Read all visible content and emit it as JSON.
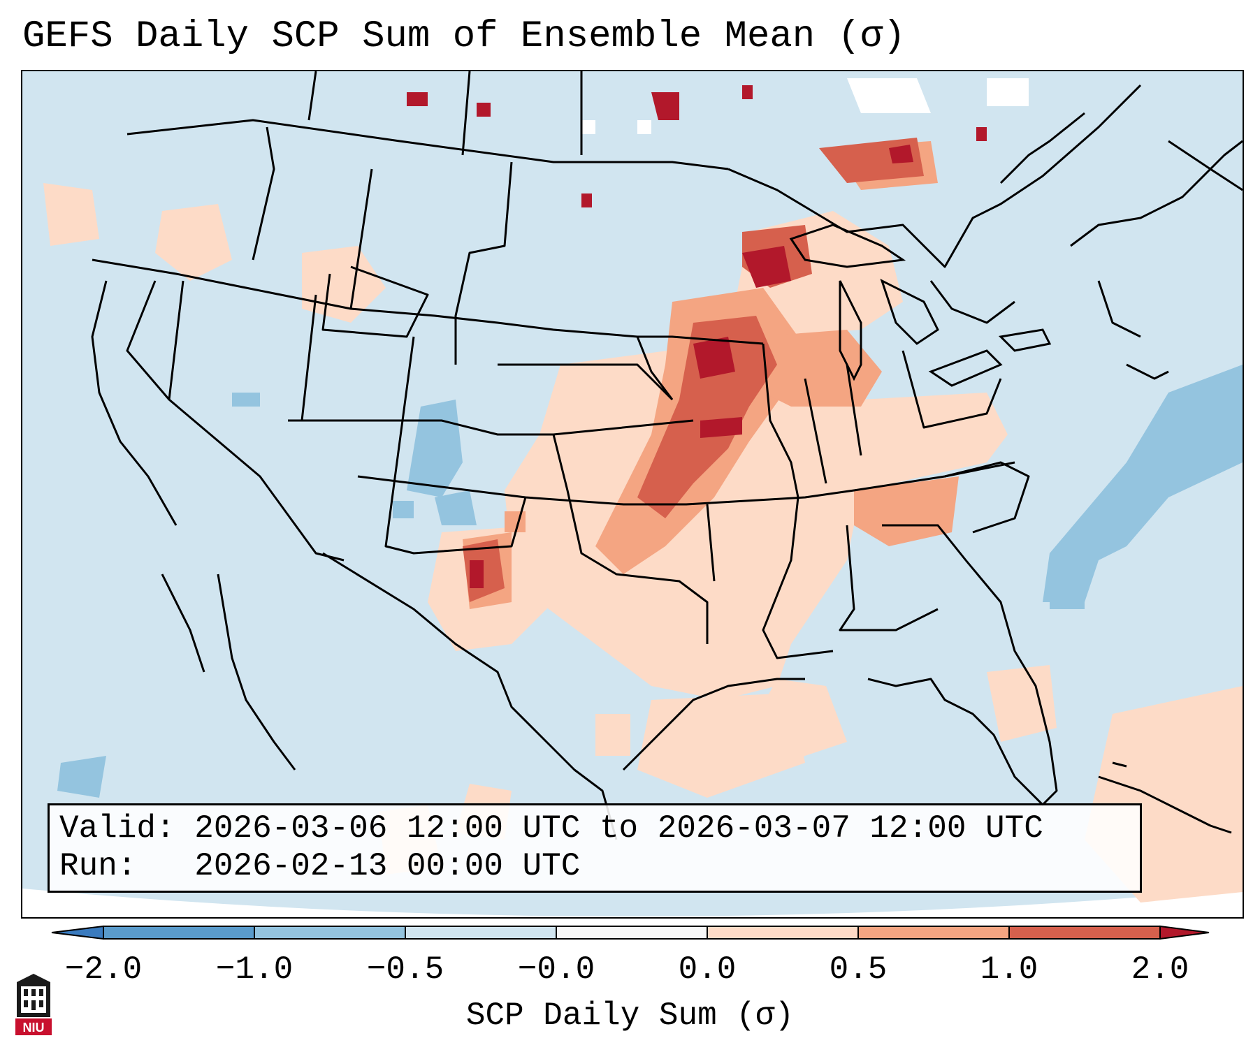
{
  "title": "GEFS Daily SCP Sum of Ensemble Mean (σ)",
  "info": {
    "valid_label": "Valid:",
    "valid_value": "2026-03-06 12:00 UTC to 2026-03-07 12:00 UTC",
    "run_label": "Run:",
    "run_value": "2026-02-13 00:00 UTC"
  },
  "colorbar": {
    "label": "SCP Daily Sum (σ)",
    "ticks": [
      "−2.0",
      "−1.0",
      "−0.5",
      "−0.0",
      "0.0",
      "0.5",
      "1.0",
      "2.0"
    ],
    "bins": [
      {
        "range": "< -2.0",
        "color": "#3a7bbf"
      },
      {
        "range": "-2.0 to -1.0",
        "color": "#5a9bcb"
      },
      {
        "range": "-1.0 to -0.5",
        "color": "#94c4df"
      },
      {
        "range": "-0.5 to -0.0",
        "color": "#d1e5f0"
      },
      {
        "range": "-0.0 to 0.0",
        "color": "#f7f7f7"
      },
      {
        "range": "0.0 to 0.5",
        "color": "#fddbc7"
      },
      {
        "range": "0.5 to 1.0",
        "color": "#f4a582"
      },
      {
        "range": "1.0 to 2.0",
        "color": "#d6604d"
      },
      {
        "range": "> 2.0",
        "color": "#b2182b"
      }
    ]
  },
  "map_colors": {
    "background": "#d1e5f0",
    "low_pos": "#fddbc7",
    "mid_pos": "#f4a582",
    "high_pos": "#d6604d",
    "extreme_pos": "#b2182b",
    "neg": "#94c4df",
    "neutral": "#ffffff",
    "borders": "#000000"
  },
  "logo": {
    "text": "NIU"
  }
}
